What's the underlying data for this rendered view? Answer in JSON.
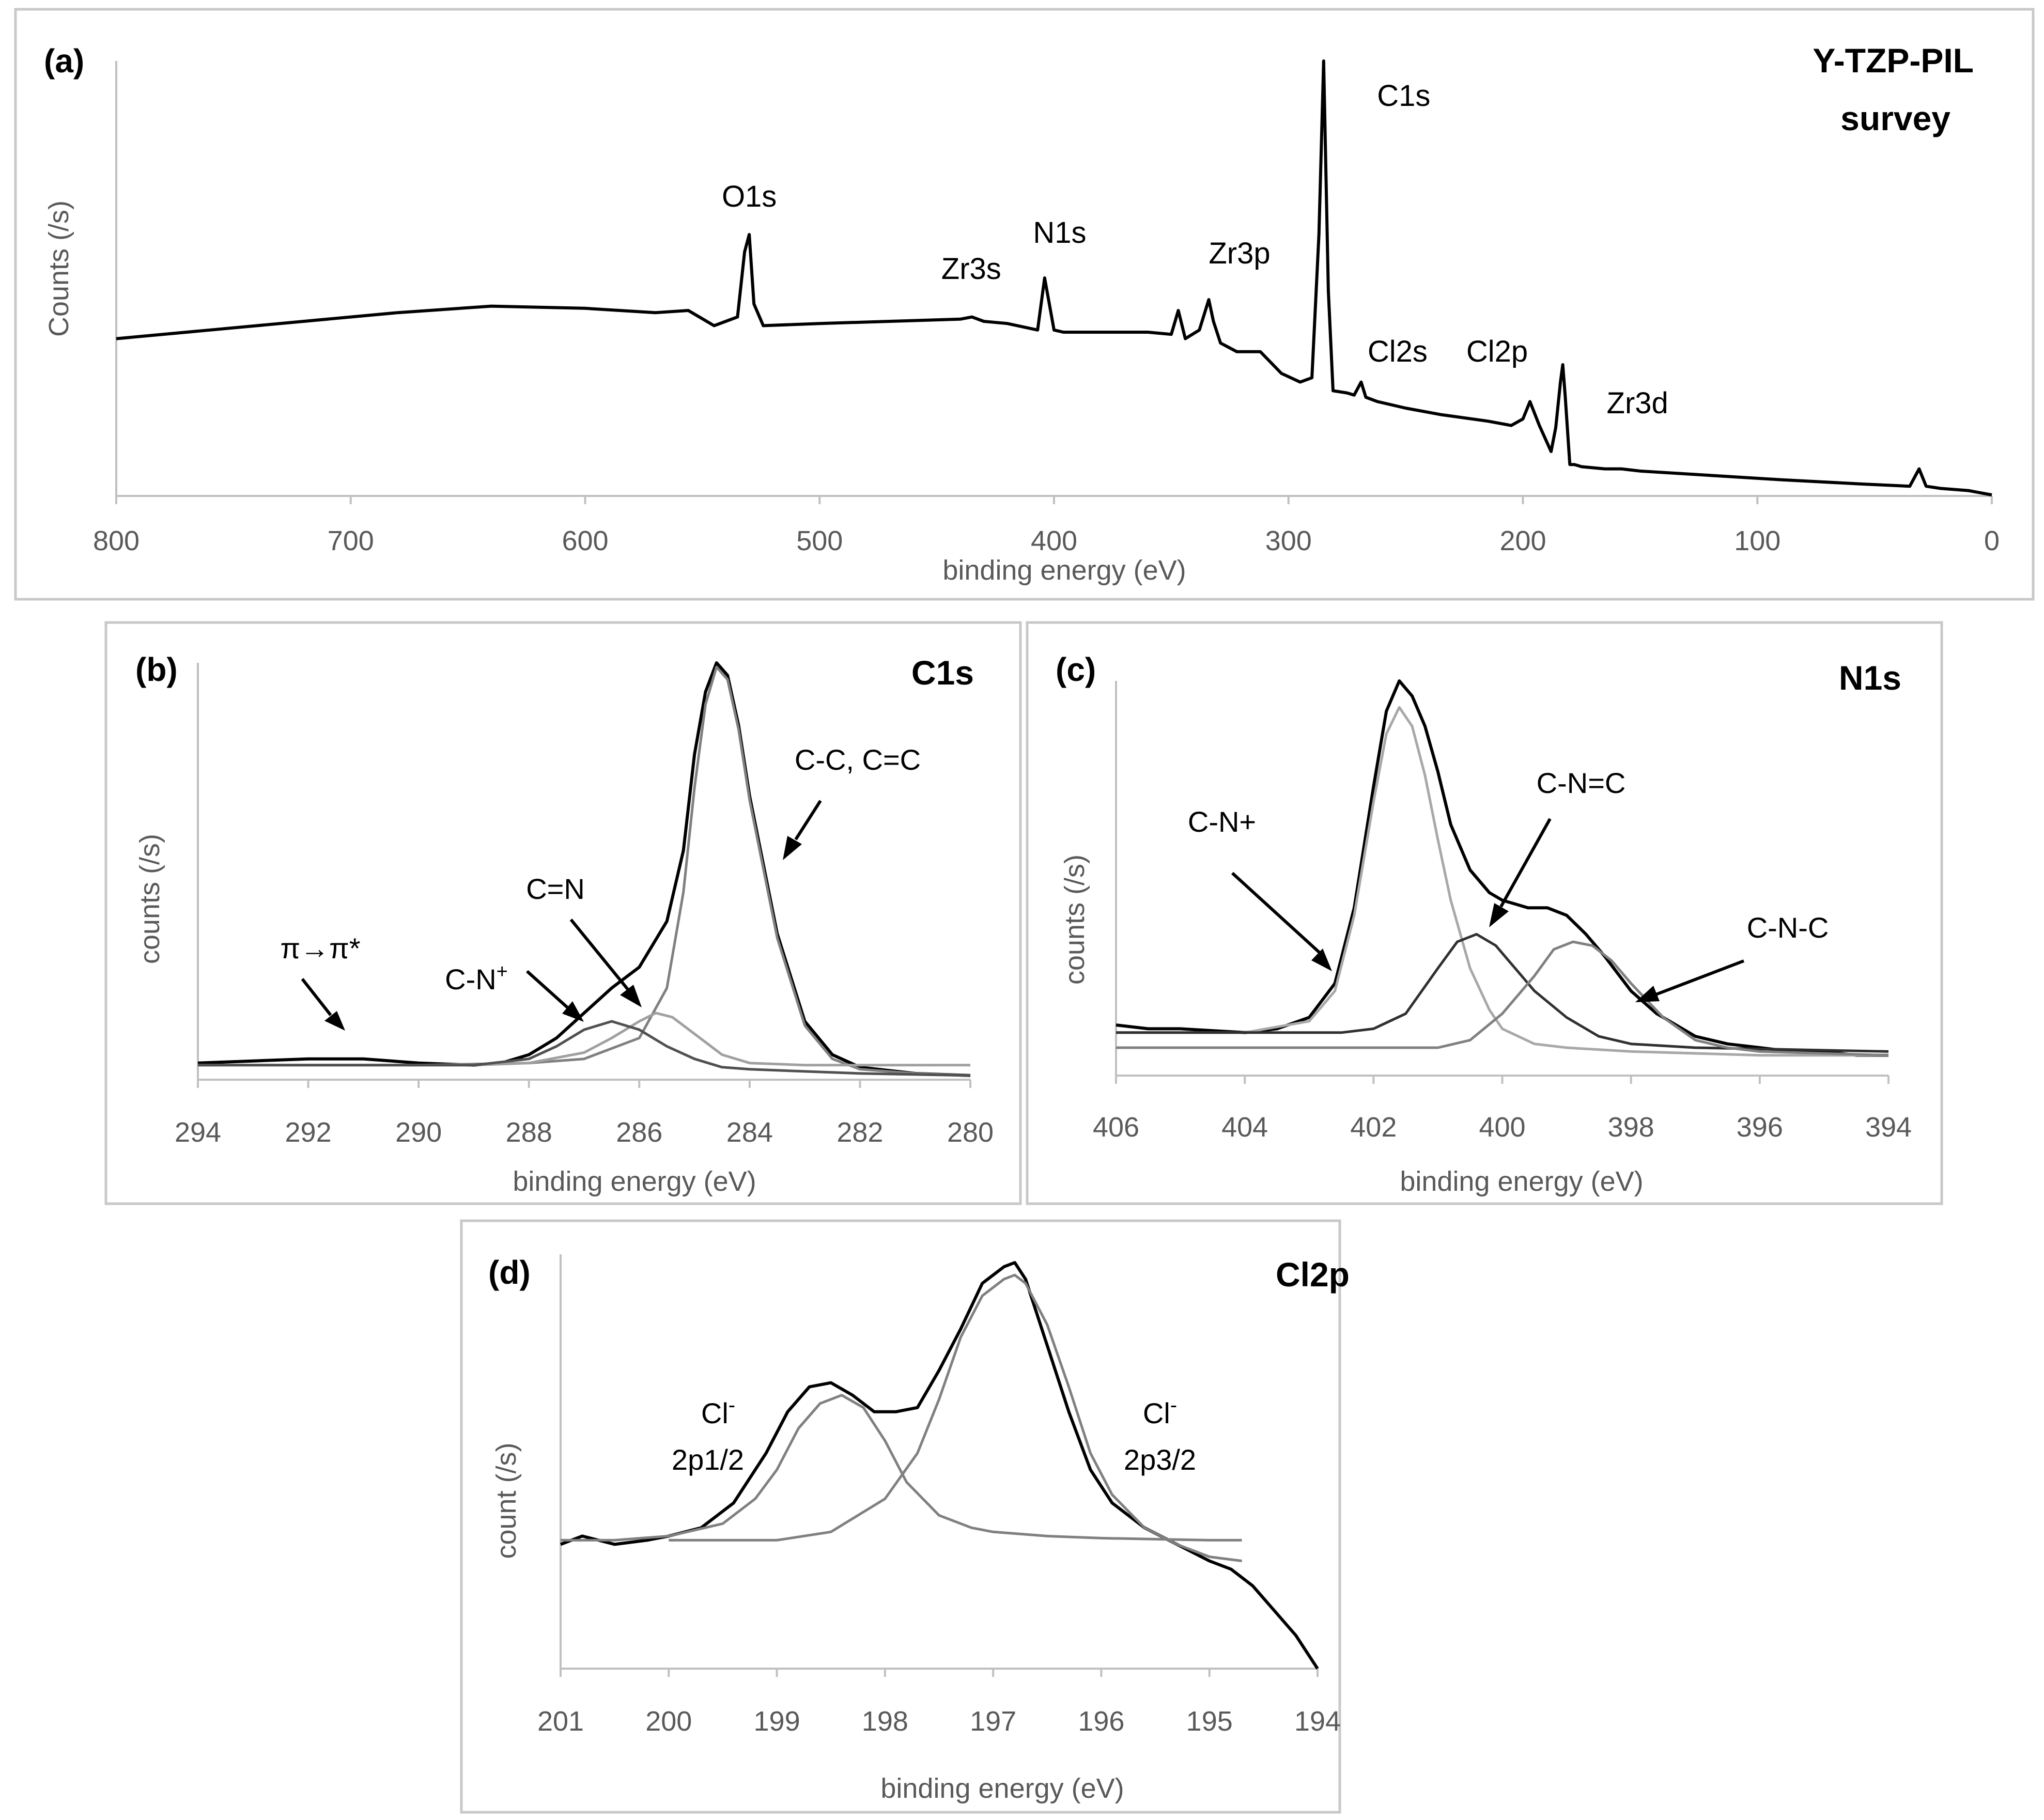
{
  "chart_data": [
    {
      "id": "a",
      "type": "line",
      "panel_label": "(a)",
      "title": "Y-TZP-PIL survey",
      "title_lines": [
        "Y-TZP-PIL",
        "survey"
      ],
      "xlabel": "binding energy (eV)",
      "ylabel": "Counts (/s)",
      "xlim": [
        800,
        0
      ],
      "ylim": [
        0,
        100
      ],
      "xticks": [
        800,
        700,
        600,
        500,
        400,
        300,
        200,
        100,
        0
      ],
      "series": [
        {
          "name": "survey",
          "x": [
            800,
            760,
            720,
            680,
            640,
            600,
            570,
            556,
            545,
            535,
            532,
            530,
            528,
            524,
            500,
            470,
            440,
            435,
            430,
            420,
            407,
            404,
            402,
            400,
            396,
            380,
            360,
            350,
            347,
            344,
            338,
            334,
            332,
            329,
            322,
            312,
            303,
            295,
            290,
            287,
            285,
            283,
            281,
            275,
            272,
            269,
            267,
            262,
            250,
            235,
            215,
            205,
            200,
            197,
            193,
            188,
            186,
            184,
            183,
            182,
            180,
            178,
            175,
            165,
            158,
            150,
            120,
            90,
            55,
            35,
            31,
            28,
            22,
            10,
            5,
            0
          ],
          "y": [
            36,
            38,
            40,
            42,
            43.5,
            43,
            42,
            42.5,
            39,
            41,
            56,
            60,
            44,
            39,
            39.5,
            40,
            40.5,
            41,
            40,
            39.5,
            38,
            50,
            44,
            38,
            37.5,
            37.5,
            37.5,
            37,
            42.5,
            36,
            38,
            45,
            40,
            35,
            33,
            33,
            28,
            26,
            27,
            60,
            100,
            47,
            24,
            23.5,
            23,
            26,
            22.5,
            21.5,
            20,
            18.5,
            17,
            16,
            17.5,
            21.5,
            16,
            10,
            15.5,
            26,
            30,
            23,
            7,
            7,
            6.5,
            6,
            6,
            5.5,
            4.5,
            3.5,
            2.5,
            2,
            6,
            2,
            1.5,
            1,
            0.5,
            0
          ]
        }
      ],
      "annotations": [
        {
          "text": "O1s",
          "x": 530
        },
        {
          "text": "Zr3s",
          "x": 432
        },
        {
          "text": "N1s",
          "x": 402
        },
        {
          "text": "Zr3p",
          "x": 333
        },
        {
          "text": "C1s",
          "x": 285
        },
        {
          "text": "Cl2s",
          "x": 270
        },
        {
          "text": "Cl2p",
          "x": 200
        },
        {
          "text": "Zr3d",
          "x": 182
        }
      ]
    },
    {
      "id": "b",
      "type": "line",
      "panel_label": "(b)",
      "title": "C1s",
      "xlabel": "binding energy (eV)",
      "ylabel": "counts (/s)",
      "xlim": [
        294,
        280
      ],
      "ylim": [
        0,
        100
      ],
      "xticks": [
        294,
        292,
        290,
        288,
        286,
        284,
        282,
        280
      ],
      "series": [
        {
          "name": "envelope",
          "color": "#000000",
          "x": [
            294,
            293,
            292,
            291,
            290,
            289,
            288.5,
            288,
            287.5,
            287,
            286.5,
            286,
            285.5,
            285.2,
            285,
            284.8,
            284.6,
            284.4,
            284.2,
            284,
            283.5,
            283,
            282.5,
            282,
            281,
            280
          ],
          "y": [
            4,
            4.5,
            5,
            5,
            4,
            3.5,
            4,
            6,
            10,
            16,
            22,
            27,
            38,
            55,
            78,
            93,
            100,
            97,
            85,
            68,
            35,
            14,
            6,
            3,
            1.5,
            1
          ]
        },
        {
          "name": "C-C, C=C",
          "color": "#808080",
          "x": [
            294,
            290,
            288,
            287,
            286,
            285.5,
            285.2,
            285,
            284.8,
            284.6,
            284.4,
            284.2,
            284,
            283.5,
            283,
            282.5,
            282,
            281,
            280
          ],
          "y": [
            3.5,
            3.5,
            4,
            5,
            10,
            22,
            45,
            70,
            90,
            99,
            96,
            84,
            67,
            34,
            13,
            5,
            2.5,
            1.5,
            1
          ]
        },
        {
          "name": "C=N",
          "color": "#a0a0a0",
          "x": [
            294,
            289,
            288,
            287,
            286.5,
            286,
            285.7,
            285.4,
            285,
            284.5,
            284,
            283,
            280
          ],
          "y": [
            3.5,
            3.5,
            4,
            6.5,
            10,
            14,
            16,
            15,
            11,
            6,
            4,
            3.5,
            3.5
          ]
        },
        {
          "name": "C-N+",
          "color": "#505050",
          "x": [
            294,
            289,
            288,
            287.5,
            287,
            286.5,
            286,
            285.5,
            285,
            284.5,
            284,
            282,
            280
          ],
          "y": [
            3.5,
            3.5,
            5,
            8,
            12,
            14,
            12,
            8,
            5,
            3,
            2.5,
            1.5,
            1
          ]
        }
      ],
      "annotations": [
        {
          "text": "π→π*"
        },
        {
          "text": "C-N",
          "sup": "+"
        },
        {
          "text": "C=N"
        },
        {
          "text": "C-C, C=C"
        }
      ]
    },
    {
      "id": "c",
      "type": "line",
      "panel_label": "(c)",
      "title": "N1s",
      "xlabel": "binding energy (eV)",
      "ylabel": "counts (/s)",
      "xlim": [
        406,
        394
      ],
      "ylim": [
        0,
        100
      ],
      "xticks": [
        406,
        404,
        402,
        400,
        398,
        396,
        394
      ],
      "series": [
        {
          "name": "envelope",
          "color": "#000000",
          "x": [
            406,
            405.5,
            405,
            404.5,
            404,
            403.5,
            403,
            402.6,
            402.3,
            402,
            401.8,
            401.6,
            401.4,
            401.2,
            401,
            400.8,
            400.5,
            400.2,
            400,
            399.6,
            399.3,
            399,
            398.7,
            398.4,
            398,
            397.6,
            397,
            396.5,
            396,
            395.5,
            395,
            394.5,
            394
          ],
          "y": [
            9,
            8,
            8,
            7.5,
            7,
            8,
            11,
            20,
            40,
            72,
            92,
            100,
            96,
            88,
            76,
            62,
            50,
            44,
            42,
            40,
            40,
            38,
            33,
            27,
            18,
            12,
            6,
            4,
            3,
            2,
            2,
            1,
            1
          ]
        },
        {
          "name": "C-N+",
          "color": "#a8a8a8",
          "x": [
            406,
            404,
            403,
            402.6,
            402.3,
            402,
            401.8,
            401.6,
            401.4,
            401.2,
            401,
            400.8,
            400.5,
            400.2,
            400,
            399.5,
            399,
            398,
            396,
            394
          ],
          "y": [
            7,
            7,
            10,
            18,
            38,
            68,
            86,
            93,
            88,
            75,
            58,
            42,
            24,
            13,
            8,
            4,
            3,
            2,
            1,
            1
          ]
        },
        {
          "name": "C-N=C",
          "color": "#303030",
          "x": [
            406,
            402.5,
            402,
            401.5,
            401,
            400.7,
            400.4,
            400.1,
            399.8,
            399.5,
            399,
            398.5,
            398,
            397,
            394
          ],
          "y": [
            7,
            7,
            8,
            12,
            24,
            31,
            33,
            30,
            24,
            18,
            11,
            6,
            4,
            3,
            2
          ]
        },
        {
          "name": "C-N-C",
          "color": "#808080",
          "x": [
            406,
            401,
            400.5,
            400,
            399.5,
            399.2,
            398.9,
            398.6,
            398.3,
            398,
            397.5,
            397,
            396.5,
            396,
            394
          ],
          "y": [
            3,
            3,
            5,
            12,
            22,
            29,
            31,
            30,
            26,
            20,
            11,
            5,
            3,
            2,
            1
          ]
        }
      ],
      "annotations": [
        {
          "text": "C-N+"
        },
        {
          "text": "C-N=C"
        },
        {
          "text": "C-N-C"
        }
      ]
    },
    {
      "id": "d",
      "type": "line",
      "panel_label": "(d)",
      "title": "Cl2p",
      "xlabel": "binding energy (eV)",
      "ylabel": "count (/s)",
      "xlim": [
        201,
        194
      ],
      "ylim": [
        0,
        100
      ],
      "xticks": [
        201,
        200,
        199,
        198,
        197,
        196,
        195,
        194
      ],
      "series": [
        {
          "name": "envelope",
          "color": "#000000",
          "x": [
            201,
            200.8,
            200.5,
            200.2,
            200,
            199.7,
            199.4,
            199.1,
            198.9,
            198.7,
            198.5,
            198.3,
            198.1,
            197.9,
            197.7,
            197.5,
            197.3,
            197.1,
            196.9,
            196.8,
            196.7,
            196.5,
            196.3,
            196.1,
            195.9,
            195.6,
            195.3,
            195.0,
            194.8,
            194.6,
            194.4,
            194.2,
            194.0
          ],
          "y": [
            30,
            32,
            30,
            31,
            32,
            34,
            40,
            52,
            62,
            68,
            69,
            66,
            62,
            62,
            63,
            72,
            82,
            93,
            97,
            98,
            94,
            78,
            62,
            48,
            40,
            34,
            30,
            26,
            24,
            20,
            14,
            8,
            0
          ]
        },
        {
          "name": "Cl- 2p1/2",
          "color": "#808080",
          "x": [
            201,
            200.5,
            200,
            199.5,
            199.2,
            199,
            198.8,
            198.6,
            198.4,
            198.2,
            198,
            197.8,
            197.5,
            197.2,
            197,
            196.5,
            196,
            195,
            194.7
          ],
          "y": [
            31,
            31,
            32,
            35,
            41,
            48,
            58,
            64,
            66,
            63,
            55,
            45,
            37,
            34,
            33,
            32,
            31.5,
            31,
            31
          ]
        },
        {
          "name": "Cl- 2p3/2",
          "color": "#808080",
          "x": [
            200,
            199,
            198.5,
            198,
            197.7,
            197.5,
            197.3,
            197.1,
            196.9,
            196.8,
            196.7,
            196.5,
            196.3,
            196.1,
            195.9,
            195.6,
            195.3,
            195,
            194.7
          ],
          "y": [
            31,
            31,
            33,
            41,
            52,
            65,
            80,
            90,
            94,
            95,
            93,
            83,
            68,
            52,
            42,
            34,
            30,
            27,
            26
          ]
        }
      ],
      "annotations": [
        {
          "text": "Cl",
          "sup": "-",
          "line2": "2p1/2"
        },
        {
          "text": "Cl",
          "sup": "-",
          "line2": "2p3/2"
        }
      ]
    }
  ]
}
